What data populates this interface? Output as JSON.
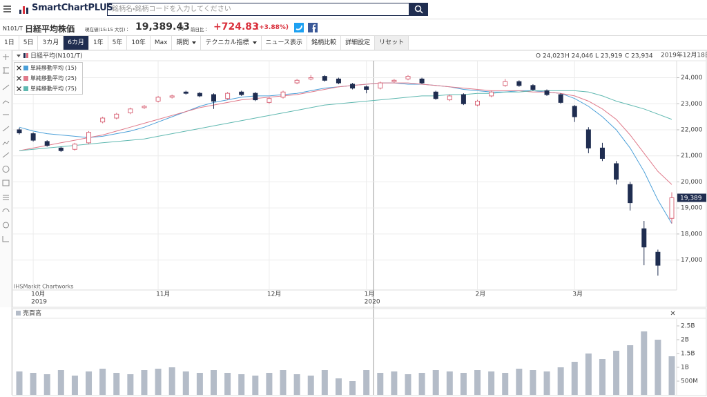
{
  "header": {
    "logo": "SmartChartPLUS",
    "search_placeholder": "銘柄名・銘柄コードを入力してください",
    "code": "N101/T",
    "name": "日経平均株価",
    "price_caption": "現在値(15:15 大引)：",
    "price": "19,389.43",
    "price_unit": "円",
    "change_caption": "前日比：",
    "change": "+724.83",
    "change_pct": "(+3.88%)",
    "toolbar": [
      "1日",
      "5日",
      "3カ月",
      "6カ月",
      "1年",
      "5年",
      "10年",
      "Max",
      "期間",
      "テクニカル指標",
      "ニュース表示",
      "銘柄比較",
      "詳細設定",
      "リセット"
    ],
    "toolbar_active": "6カ月"
  },
  "chart_data": [
    {
      "type": "candlestick",
      "title": "日経平均(N101/T)",
      "ohlc_labels": [
        "O 24,023",
        "H 24,046",
        "L 23,919",
        "C 23,934"
      ],
      "date_label": "2019年12月18日",
      "watermark": "IHSMarkit Chartworks",
      "last_label": "19,389",
      "categories": [
        null,
        "10月",
        null,
        null,
        null,
        null,
        null,
        null,
        null,
        null,
        "11月",
        null,
        null,
        null,
        null,
        null,
        null,
        null,
        "12月",
        null,
        null,
        null,
        null,
        null,
        null,
        "1月",
        null,
        null,
        null,
        null,
        null,
        null,
        null,
        "2月",
        null,
        null,
        null,
        null,
        null,
        null,
        "3月",
        null,
        null,
        null,
        null,
        null,
        null,
        null
      ],
      "category_sublabels": [
        null,
        "2019",
        null,
        null,
        null,
        null,
        null,
        null,
        null,
        null,
        null,
        null,
        null,
        null,
        null,
        null,
        null,
        null,
        null,
        null,
        null,
        null,
        null,
        null,
        null,
        "2020",
        null,
        null,
        null,
        null,
        null,
        null,
        null,
        null,
        null,
        null,
        null,
        null,
        null,
        null,
        null,
        null,
        null,
        null,
        null,
        null,
        null,
        null
      ],
      "open": [
        22000,
        21850,
        21550,
        21300,
        21250,
        21500,
        22300,
        22450,
        22650,
        22850,
        23100,
        23250,
        23450,
        23400,
        23350,
        23200,
        23450,
        23400,
        23050,
        23250,
        23800,
        23950,
        24050,
        23950,
        23750,
        23650,
        23600,
        23850,
        23950,
        23950,
        23450,
        23150,
        23350,
        22950,
        23300,
        23700,
        23850,
        23700,
        23500,
        23350,
        22900,
        22000,
        21300,
        20700,
        19900,
        18200,
        17300,
        18600
      ],
      "high": [
        22080,
        21900,
        21600,
        21350,
        21500,
        21950,
        22500,
        22650,
        22850,
        22950,
        23300,
        23350,
        23500,
        23450,
        23400,
        23450,
        23500,
        23450,
        23250,
        23500,
        23950,
        24100,
        24100,
        24000,
        23800,
        23700,
        23850,
        23950,
        24100,
        24000,
        23500,
        23350,
        23400,
        23150,
        23500,
        23950,
        23900,
        23750,
        23550,
        23400,
        22950,
        22100,
        21500,
        20800,
        20000,
        18500,
        17400,
        19600
      ],
      "low": [
        21820,
        21550,
        21350,
        21150,
        21200,
        21450,
        22250,
        22400,
        22600,
        22800,
        23050,
        23200,
        23350,
        23250,
        22800,
        23150,
        23300,
        23100,
        23000,
        23200,
        23750,
        23900,
        23850,
        23750,
        23550,
        23400,
        23550,
        23800,
        23900,
        23750,
        23150,
        23100,
        22950,
        22900,
        23250,
        23650,
        23650,
        23500,
        23300,
        23000,
        22300,
        21100,
        20800,
        19900,
        18900,
        16800,
        16400,
        18400
      ],
      "close": [
        21880,
        21600,
        21400,
        21200,
        21450,
        21900,
        22450,
        22600,
        22800,
        22900,
        23250,
        23300,
        23400,
        23300,
        23100,
        23400,
        23350,
        23150,
        23200,
        23450,
        23900,
        24000,
        23900,
        23800,
        23600,
        23550,
        23800,
        23900,
        24050,
        23800,
        23200,
        23300,
        23000,
        23100,
        23450,
        23850,
        23700,
        23550,
        23350,
        23050,
        22500,
        21300,
        20900,
        20100,
        19200,
        17500,
        16800,
        19389
      ],
      "up_color": "#d9687a",
      "down_color": "#1f2d50",
      "series": [
        {
          "name": "単純移動平均 (15)",
          "color": "#4a9fd8",
          "values": [
            22100,
            21950,
            21850,
            21800,
            21750,
            21700,
            21750,
            21850,
            21950,
            22100,
            22300,
            22500,
            22700,
            22900,
            23050,
            23150,
            23250,
            23300,
            23300,
            23350,
            23400,
            23500,
            23600,
            23650,
            23700,
            23750,
            23800,
            23800,
            23750,
            23750,
            23700,
            23650,
            23550,
            23500,
            23450,
            23450,
            23500,
            23500,
            23450,
            23400,
            23200,
            22900,
            22500,
            22000,
            21300,
            20400,
            19300,
            18400
          ]
        },
        {
          "name": "単純移動平均 (25)",
          "color": "#e07a8a",
          "values": [
            21200,
            21300,
            21400,
            21500,
            21600,
            21700,
            21800,
            21950,
            22100,
            22250,
            22400,
            22550,
            22700,
            22850,
            22950,
            23050,
            23150,
            23200,
            23250,
            23300,
            23350,
            23450,
            23550,
            23650,
            23700,
            23750,
            23800,
            23800,
            23800,
            23750,
            23700,
            23650,
            23600,
            23550,
            23500,
            23500,
            23500,
            23450,
            23450,
            23400,
            23300,
            23100,
            22800,
            22400,
            21800,
            21100,
            20400,
            19900
          ]
        },
        {
          "name": "単純移動平均 (75)",
          "color": "#5fb8b0",
          "values": [
            21200,
            21250,
            21300,
            21350,
            21400,
            21450,
            21500,
            21550,
            21600,
            21650,
            21750,
            21850,
            21950,
            22050,
            22150,
            22250,
            22350,
            22450,
            22550,
            22650,
            22750,
            22850,
            22950,
            23000,
            23050,
            23100,
            23150,
            23200,
            23250,
            23300,
            23300,
            23350,
            23350,
            23400,
            23400,
            23450,
            23450,
            23500,
            23500,
            23500,
            23500,
            23450,
            23300,
            23100,
            22950,
            22800,
            22600,
            22400
          ]
        }
      ],
      "ylim": [
        15850,
        24650
      ],
      "yticks": [
        {
          "value": 17000,
          "label": "17,000"
        },
        {
          "value": 18000,
          "label": "18,000"
        },
        {
          "value": 19000,
          "label": "19,000"
        },
        {
          "value": 20000,
          "label": "20,000"
        },
        {
          "value": 21000,
          "label": "21,000"
        },
        {
          "value": 22000,
          "label": "22,000"
        },
        {
          "value": 23000,
          "label": "23,000"
        },
        {
          "value": 24000,
          "label": "24,000"
        }
      ],
      "grid": true
    },
    {
      "type": "bar",
      "title": "売買高",
      "color": "#b4bcc8",
      "values": [
        850000000,
        800000000,
        750000000,
        900000000,
        700000000,
        850000000,
        950000000,
        800000000,
        750000000,
        900000000,
        950000000,
        1000000000,
        850000000,
        800000000,
        900000000,
        800000000,
        750000000,
        700000000,
        800000000,
        900000000,
        750000000,
        700000000,
        900000000,
        600000000,
        500000000,
        900000000,
        800000000,
        850000000,
        750000000,
        800000000,
        900000000,
        850000000,
        800000000,
        900000000,
        850000000,
        800000000,
        950000000,
        900000000,
        850000000,
        1000000000,
        1200000000,
        1500000000,
        1300000000,
        1600000000,
        1800000000,
        2300000000,
        2000000000,
        1400000000
      ],
      "ylim": [
        0,
        2750000000
      ],
      "yticks": [
        {
          "value": 500000000,
          "label": "500M"
        },
        {
          "value": 1000000000,
          "label": "1B"
        },
        {
          "value": 1500000000,
          "label": "1.5B"
        },
        {
          "value": 2000000000,
          "label": "2B"
        },
        {
          "value": 2500000000,
          "label": "2.5B"
        }
      ],
      "grid": false
    }
  ]
}
